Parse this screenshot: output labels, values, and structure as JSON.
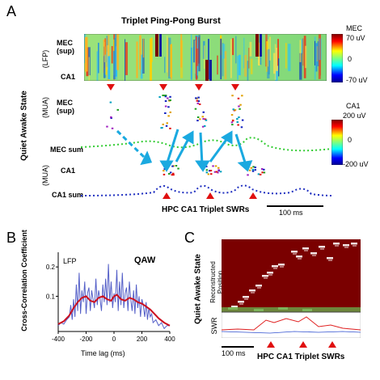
{
  "panels": {
    "a": {
      "letter": "A",
      "title": "Triplet Ping-Pong Burst",
      "state_label": "Quiet Awake State",
      "lfp_group": "(LFP)",
      "mua_group1": "(MUA)",
      "mua_group2": "(MUA)",
      "rows": {
        "mec_sup_lfp": "MEC\n(sup)",
        "ca1_lfp": "CA1",
        "mec_sup_mua": "MEC\n(sup)",
        "mec_sum": "MEC sum",
        "ca1_mua": "CA1",
        "ca1_sum": "CA1 sum"
      },
      "colorbar_mec": {
        "label": "MEC",
        "max": "70 uV",
        "mid": "0",
        "min": "-70 uV"
      },
      "colorbar_ca1": {
        "label": "CA1",
        "max": "200 uV",
        "mid": "0",
        "min": "-200 uV"
      },
      "bottom_label": "HPC CA1 Triplet SWRs",
      "scalebar": "100 ms"
    },
    "b": {
      "letter": "B",
      "inset": "LFP",
      "tag": "QAW",
      "chart_data": {
        "type": "line",
        "xlabel": "Time lag (ms)",
        "ylabel": "Cross-Correlation Coefficient",
        "xlim": [
          -400,
          400
        ],
        "ylim": [
          -0.02,
          0.25
        ],
        "xticks": [
          "-400",
          "-200",
          "0",
          "200",
          "400"
        ],
        "yticks": [
          "0.1",
          "0.2"
        ],
        "series": [
          {
            "color": "#5560c8",
            "x": [
              -400,
              -380,
              -360,
              -340,
              -320,
              -310,
              -300,
              -290,
              -280,
              -270,
              -260,
              -250,
              -240,
              -230,
              -220,
              -210,
              -200,
              -190,
              -180,
              -170,
              -160,
              -150,
              -140,
              -130,
              -120,
              -110,
              -100,
              -90,
              -80,
              -70,
              -60,
              -50,
              -40,
              -30,
              -20,
              -10,
              0,
              10,
              20,
              30,
              40,
              50,
              60,
              70,
              80,
              90,
              100,
              110,
              120,
              130,
              140,
              150,
              160,
              170,
              180,
              190,
              200,
              210,
              220,
              230,
              240,
              250,
              260,
              270,
              280,
              300,
              320,
              340,
              360,
              380,
              400
            ],
            "values": [
              0.0,
              0.01,
              0.005,
              0.02,
              0.03,
              0.07,
              0.02,
              0.09,
              0.03,
              0.14,
              0.05,
              0.18,
              0.04,
              0.12,
              0.08,
              0.15,
              0.04,
              0.11,
              0.13,
              0.05,
              0.12,
              0.09,
              0.06,
              0.16,
              0.07,
              0.12,
              0.09,
              0.05,
              0.14,
              0.08,
              0.16,
              0.07,
              0.21,
              0.08,
              0.15,
              0.06,
              0.11,
              0.08,
              0.19,
              0.05,
              0.15,
              0.07,
              0.18,
              0.06,
              0.11,
              0.13,
              0.05,
              0.15,
              0.09,
              0.05,
              0.12,
              0.04,
              0.14,
              0.06,
              0.1,
              0.03,
              0.09,
              0.07,
              0.03,
              0.08,
              0.02,
              0.06,
              0.03,
              0.04,
              0.01,
              0.02,
              0.0,
              0.01,
              -0.01,
              0.0,
              0.0
            ]
          },
          {
            "color": "#cc1020",
            "x": [
              -400,
              -360,
              -320,
              -290,
              -260,
              -230,
              -200,
              -170,
              -140,
              -110,
              -80,
              -50,
              -20,
              0,
              20,
              50,
              80,
              110,
              140,
              170,
              200,
              230,
              260,
              290,
              320,
              360,
              400
            ],
            "values": [
              0.005,
              0.015,
              0.035,
              0.06,
              0.08,
              0.095,
              0.1,
              0.085,
              0.08,
              0.095,
              0.1,
              0.09,
              0.085,
              0.1,
              0.105,
              0.09,
              0.085,
              0.095,
              0.09,
              0.08,
              0.075,
              0.065,
              0.055,
              0.04,
              0.025,
              0.01,
              0.0
            ]
          }
        ]
      }
    },
    "c": {
      "letter": "C",
      "state_label": "Quiet Awake State",
      "position_label": "Reconstructed Position",
      "swr_label": "SWR",
      "scalebar": "100 ms",
      "bottom_label": "HPC CA1 Triplet SWRs"
    }
  }
}
